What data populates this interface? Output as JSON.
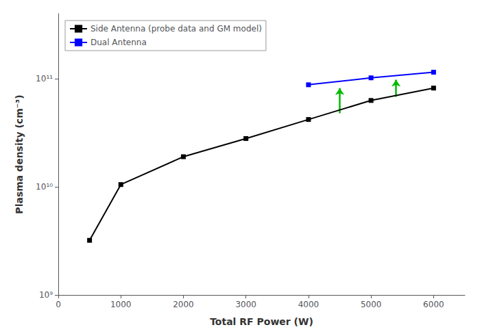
{
  "chart_data": {
    "type": "line",
    "xlabel": "Total RF Power (W)",
    "ylabel": "Plasma density (cm⁻³)",
    "log": "y",
    "xlim": [
      0,
      6500
    ],
    "ylim": [
      1000000000.0,
      400000000000.0
    ],
    "xticks": [
      0,
      1000,
      2000,
      3000,
      4000,
      5000,
      6000
    ],
    "yticks": [
      {
        "value": 1000000000.0,
        "label": "10⁹"
      },
      {
        "value": 10000000000.0,
        "label": "10¹⁰"
      },
      {
        "value": 100000000000.0,
        "label": "10¹¹"
      }
    ],
    "grid": false,
    "legend": "upper left",
    "marker": "square",
    "series": [
      {
        "name": "Side Antenna (probe data and GM model)",
        "color": "#000000",
        "x": [
          500,
          1000,
          2000,
          3000,
          4000,
          5000,
          6000
        ],
        "values": [
          3200000000.0,
          10500000000.0,
          19000000000.0,
          28000000000.0,
          42000000000.0,
          63000000000.0,
          82000000000.0
        ]
      },
      {
        "name": "Dual Antenna",
        "color": "#0000ff",
        "x": [
          4000,
          5000,
          6000
        ],
        "values": [
          88000000000.0,
          102000000000.0,
          115000000000.0
        ]
      }
    ],
    "arrows": {
      "color": "#00bb00",
      "x": [
        4500,
        5400
      ],
      "y_start": [
        48000000000.0,
        68000000000.0
      ],
      "y_end": [
        82000000000.0,
        98000000000.0
      ]
    }
  }
}
